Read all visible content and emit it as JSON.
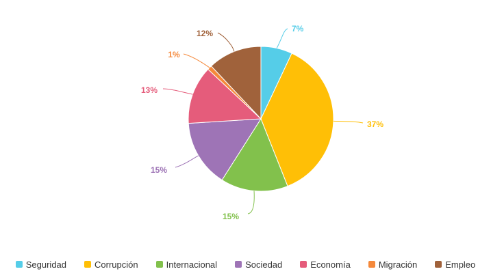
{
  "chart_data": {
    "type": "pie",
    "categories": [
      "Seguridad",
      "Corrupción",
      "Internacional",
      "Sociedad",
      "Economía",
      "Migración",
      "Empleo"
    ],
    "values": [
      7,
      37,
      15,
      15,
      13,
      1,
      12
    ],
    "value_labels": [
      "7%",
      "37%",
      "15%",
      "15%",
      "13%",
      "1%",
      "12%"
    ],
    "colors": [
      "#55cde8",
      "#ffbf06",
      "#82c14c",
      "#9e74b6",
      "#e55c7b",
      "#f5893b",
      "#a0623b"
    ],
    "legend": {
      "placement": "bottom"
    }
  }
}
